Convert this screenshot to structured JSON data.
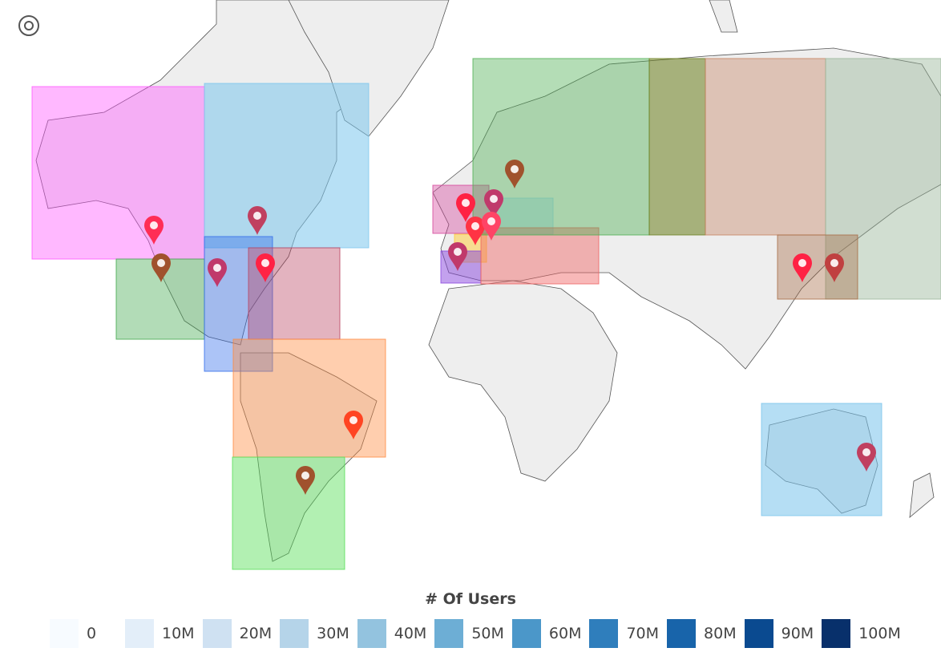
{
  "legend": {
    "title": "# Of Users",
    "items": [
      {
        "label": "0",
        "color": "#f7fbff"
      },
      {
        "label": "10M",
        "color": "#e3eef9"
      },
      {
        "label": "20M",
        "color": "#cfe1f2"
      },
      {
        "label": "30M",
        "color": "#b5d4e9"
      },
      {
        "label": "40M",
        "color": "#93c3df"
      },
      {
        "label": "50M",
        "color": "#6daed5"
      },
      {
        "label": "60M",
        "color": "#4b97c9"
      },
      {
        "label": "70M",
        "color": "#2f7ebc"
      },
      {
        "label": "80M",
        "color": "#1864aa"
      },
      {
        "label": "90M",
        "color": "#0a4a90"
      },
      {
        "label": "100M",
        "color": "#08306b"
      }
    ]
  }
}
